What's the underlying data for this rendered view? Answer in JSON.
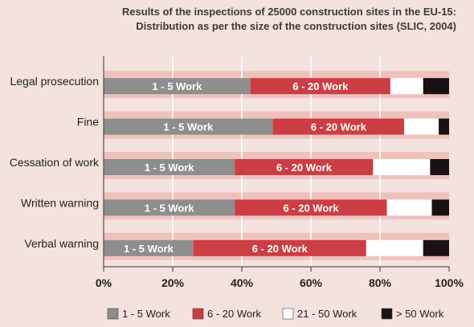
{
  "chart_data": {
    "type": "bar",
    "orientation": "horizontal",
    "stacked": true,
    "title": "Results of the inspections of 25000 construction sites in the EU-15:",
    "subtitle": "Distribution as per the size of the construction sites (SLIC, 2004)",
    "categories": [
      "Legal prosecution",
      "Fine",
      "Cessation of work",
      "Written warning",
      "Verbal warning"
    ],
    "series": [
      {
        "name": "1 - 5 Work",
        "color": "#8e8e8e",
        "values": [
          42.5,
          49,
          38,
          38,
          26
        ],
        "bar_label": "1 - 5 Work"
      },
      {
        "name": "6 - 20 Work",
        "color": "#cc3d44",
        "values": [
          40.5,
          38,
          40,
          44,
          50
        ],
        "bar_label": "6 - 20 Work"
      },
      {
        "name": "21 - 50 Work",
        "color": "#ffffff",
        "values": [
          9.5,
          10,
          16.5,
          13,
          16.5
        ],
        "bar_label": ""
      },
      {
        "name": "> 50 Work",
        "color": "#1a1114",
        "values": [
          7.5,
          3,
          5.5,
          5,
          7.5
        ],
        "bar_label": ""
      }
    ],
    "xlim": [
      0,
      100
    ],
    "xticks": [
      "0%",
      "20%",
      "40%",
      "60%",
      "80%",
      "100%"
    ],
    "grid": true,
    "legend_position": "bottom",
    "colors": {
      "background": "#f4e2df",
      "band": "#eec2bc",
      "grid": "#ffffff",
      "axis": "#333333"
    }
  }
}
